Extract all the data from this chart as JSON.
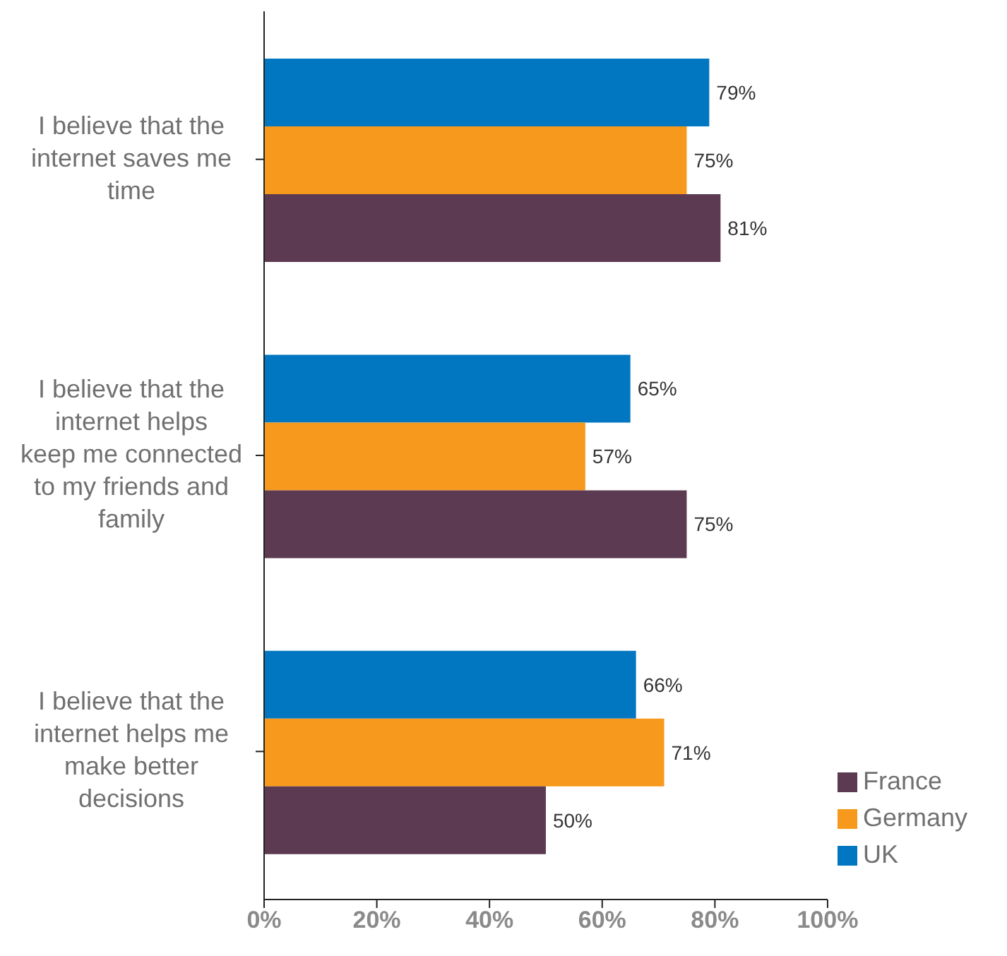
{
  "chart_data": {
    "type": "bar",
    "orientation": "horizontal",
    "categories": [
      "I believe that the internet saves me time",
      "I believe that the internet helps keep me connected to my friends and family",
      "I believe that the internet helps me make better decisions"
    ],
    "series": [
      {
        "name": "UK",
        "color": "#0077c0",
        "values": [
          79,
          65,
          66
        ],
        "value_labels": [
          "79%",
          "65%",
          "66%"
        ]
      },
      {
        "name": "Germany",
        "color": "#f7991c",
        "values": [
          75,
          57,
          71
        ],
        "value_labels": [
          "75%",
          "57%",
          "71%"
        ]
      },
      {
        "name": "France",
        "color": "#5c3a51",
        "values": [
          81,
          75,
          50
        ],
        "value_labels": [
          "81%",
          "75%",
          "50%"
        ]
      }
    ],
    "xlim": [
      0,
      100
    ],
    "xticks": [
      {
        "value": 0,
        "label": "0%"
      },
      {
        "value": 20,
        "label": "20%"
      },
      {
        "value": 40,
        "label": "40%"
      },
      {
        "value": 60,
        "label": "60%"
      },
      {
        "value": 80,
        "label": "80%"
      },
      {
        "value": 100,
        "label": "100%"
      }
    ],
    "grid": false,
    "legend": "bottom right"
  }
}
